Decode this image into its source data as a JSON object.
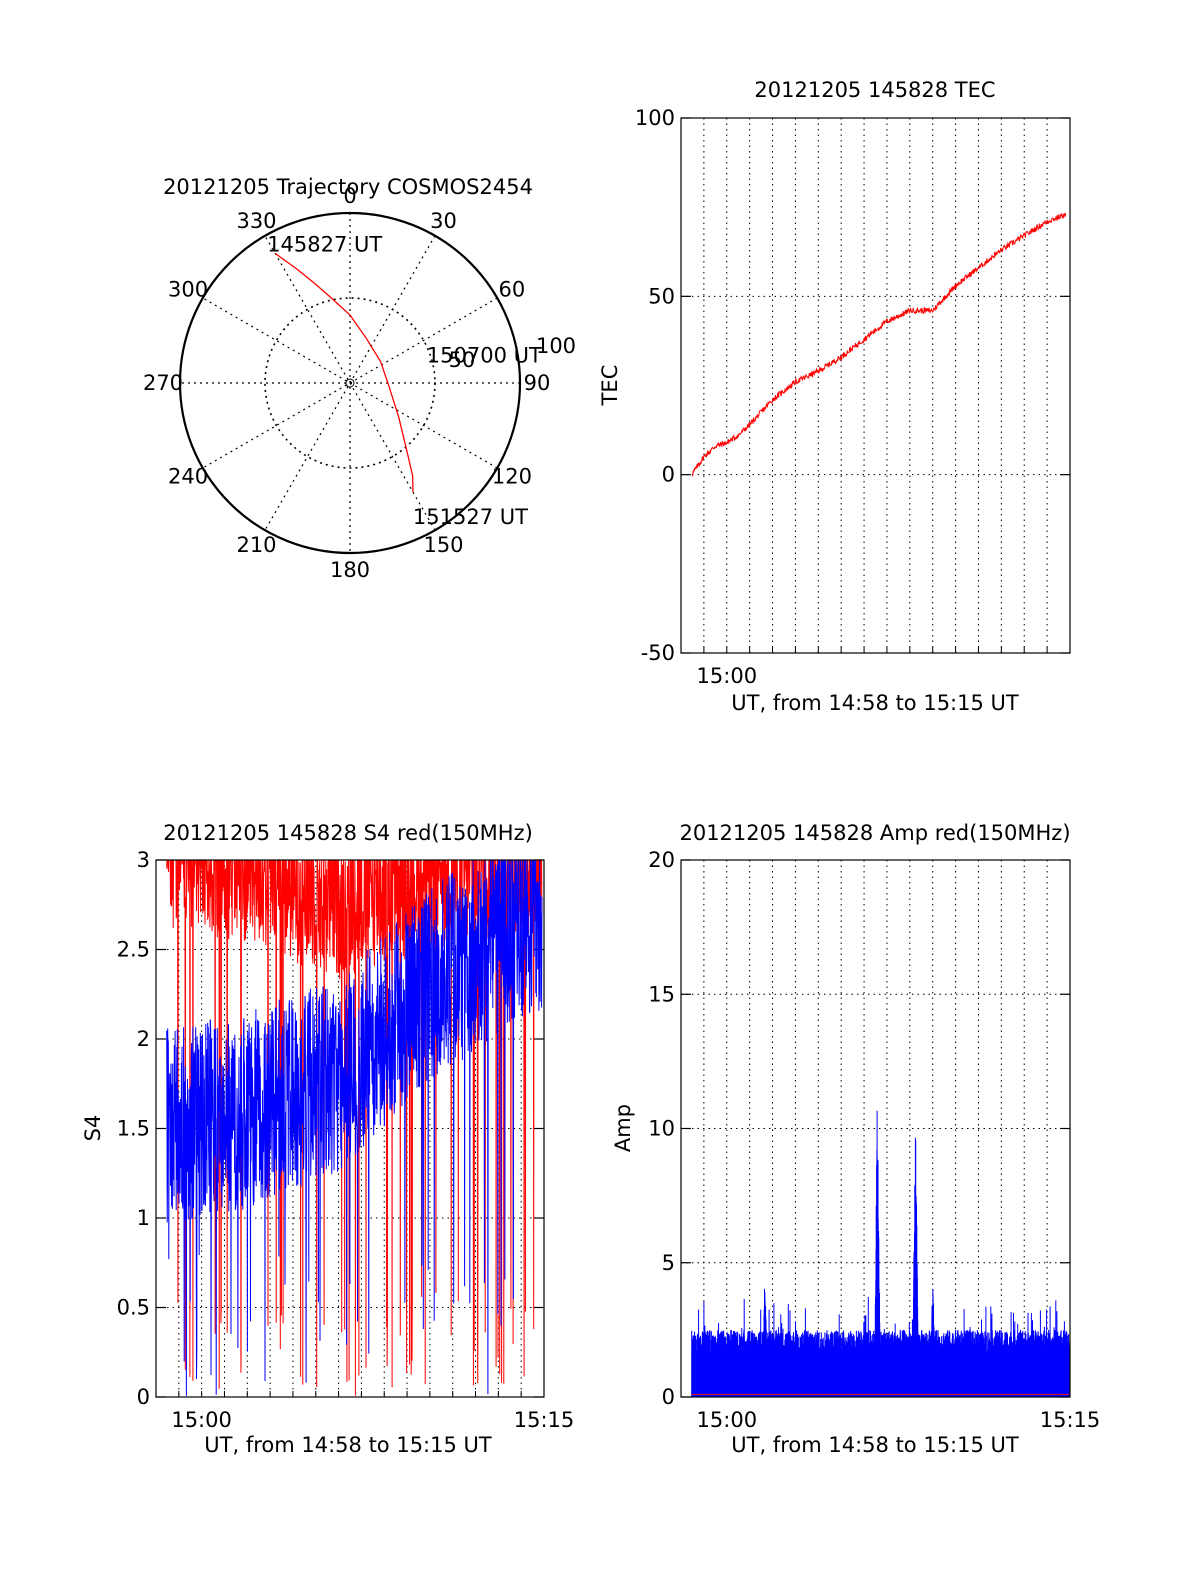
{
  "chart_data": [
    {
      "type": "polar",
      "title": "20121205 Trajectory COSMOS2454",
      "azimuth_labels": [
        "0",
        "30",
        "60",
        "90",
        "120",
        "150",
        "180",
        "210",
        "240",
        "270",
        "300",
        "330"
      ],
      "radial_labels": [
        "50",
        "100"
      ],
      "rlim": [
        0,
        100
      ],
      "grid": true,
      "series": [
        {
          "color": "#ff0000",
          "points": [
            {
              "az": 330,
              "r": 88
            },
            {
              "az": 335,
              "r": 74
            },
            {
              "az": 340,
              "r": 63
            },
            {
              "az": 347,
              "r": 52
            },
            {
              "az": 360,
              "r": 40
            },
            {
              "az": 20,
              "r": 28
            },
            {
              "az": 55,
              "r": 22
            },
            {
              "az": 95,
              "r": 23
            },
            {
              "az": 125,
              "r": 35
            },
            {
              "az": 140,
              "r": 52
            },
            {
              "az": 146,
              "r": 66
            },
            {
              "az": 150,
              "r": 74
            }
          ]
        }
      ],
      "annotations": [
        {
          "text": "145827 UT",
          "az": 330,
          "r": 88
        },
        {
          "text": "150700 UT",
          "az": 80,
          "r": 22
        },
        {
          "text": "151527 UT",
          "az": 150,
          "r": 74
        }
      ]
    },
    {
      "type": "line",
      "title": "20121205 145828 TEC",
      "xlabel": "UT, from 14:58 to 15:15 UT",
      "ylabel": "TEC",
      "xlim": [
        "14:58",
        "15:15"
      ],
      "ylim": [
        -50,
        100
      ],
      "yticks": [
        -50,
        0,
        50,
        100
      ],
      "xtick_labels": [
        "15:00"
      ],
      "grid": true,
      "series": [
        {
          "color": "#ff0000",
          "x": [
            "14:58:28",
            "14:59:00",
            "14:59:30",
            "15:00:00",
            "15:00:30",
            "15:01:00",
            "15:02:00",
            "15:03:00",
            "15:04:00",
            "15:05:00",
            "15:06:00",
            "15:07:00",
            "15:08:00",
            "15:09:00",
            "15:10:00",
            "15:11:00",
            "15:12:00",
            "15:13:00",
            "15:14:00",
            "15:14:50"
          ],
          "y": [
            0,
            5,
            8,
            9,
            11,
            14,
            21,
            26,
            29,
            33,
            38,
            43,
            46,
            46,
            53,
            58,
            63,
            67,
            71,
            73
          ]
        }
      ]
    },
    {
      "type": "line",
      "title": "20121205 145828 S4 red(150MHz)",
      "xlabel": "UT, from 14:58 to 15:15 UT",
      "ylabel": "S4",
      "xlim": [
        "14:58",
        "15:15"
      ],
      "ylim": [
        0,
        3
      ],
      "yticks": [
        0,
        0.5,
        1,
        1.5,
        2,
        2.5,
        3
      ],
      "xtick_labels": [
        "15:00",
        "15:15"
      ],
      "grid": true,
      "series": [
        {
          "color": "#ff0000",
          "level_minutes": [
            0,
            4,
            8,
            12,
            16.5
          ],
          "level_values": [
            2.9,
            2.8,
            2.6,
            2.75,
            2.85
          ]
        },
        {
          "color": "#0000ff",
          "level_minutes": [
            0,
            4,
            8,
            12,
            16.5
          ],
          "level_values": [
            1.5,
            1.6,
            1.8,
            2.3,
            2.7
          ]
        }
      ]
    },
    {
      "type": "line",
      "title": "20121205 145828 Amp red(150MHz)",
      "xlabel": "UT, from 14:58 to 15:15 UT",
      "ylabel": "Amp",
      "xlim": [
        "14:58",
        "15:15"
      ],
      "ylim": [
        0,
        20
      ],
      "yticks": [
        0,
        5,
        10,
        15,
        20
      ],
      "xtick_labels": [
        "15:00",
        "15:15"
      ],
      "grid": true,
      "series": [
        {
          "color": "#0000ff",
          "baseline": 1.5,
          "peaks": [
            {
              "x": "15:01:40",
              "y": 4.7
            },
            {
              "x": "15:06:35",
              "y": 11.8
            },
            {
              "x": "15:08:15",
              "y": 10.8
            },
            {
              "x": "15:09:00",
              "y": 4.7
            }
          ]
        },
        {
          "color": "#ff0000",
          "y": 0.1
        }
      ]
    }
  ]
}
